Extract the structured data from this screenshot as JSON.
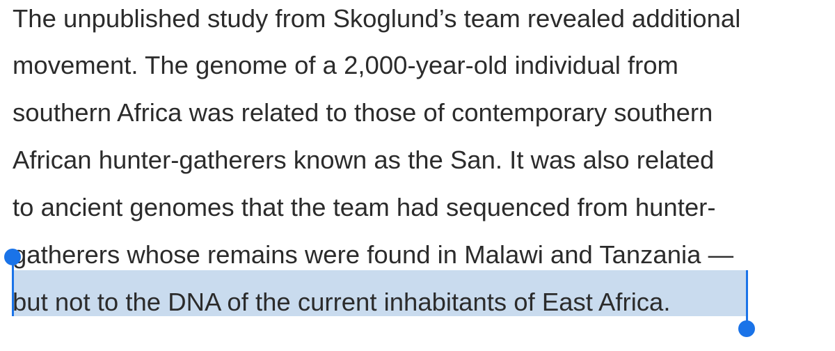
{
  "article": {
    "lines": [
      "The unpublished study from Skoglund’s team revealed additional",
      "movement. The genome of a 2,000-year-old individual from",
      "southern Africa was related to those of contemporary southern",
      "African hunter-gatherers known as the San. It was also related",
      "to ancient genomes that the team had sequenced from hunter-",
      "gatherers whose remains were found in Malawi and Tanzania —",
      "but not to the DNA of the current inhabitants of East Africa."
    ]
  },
  "selection": {
    "selected_text": "gatherers whose remains were found in Malawi and Tanzania — but not to the DNA of the current inhabitants of East Africa",
    "handle_color": "#1a73e8",
    "highlight_color": "#c9dbee"
  }
}
